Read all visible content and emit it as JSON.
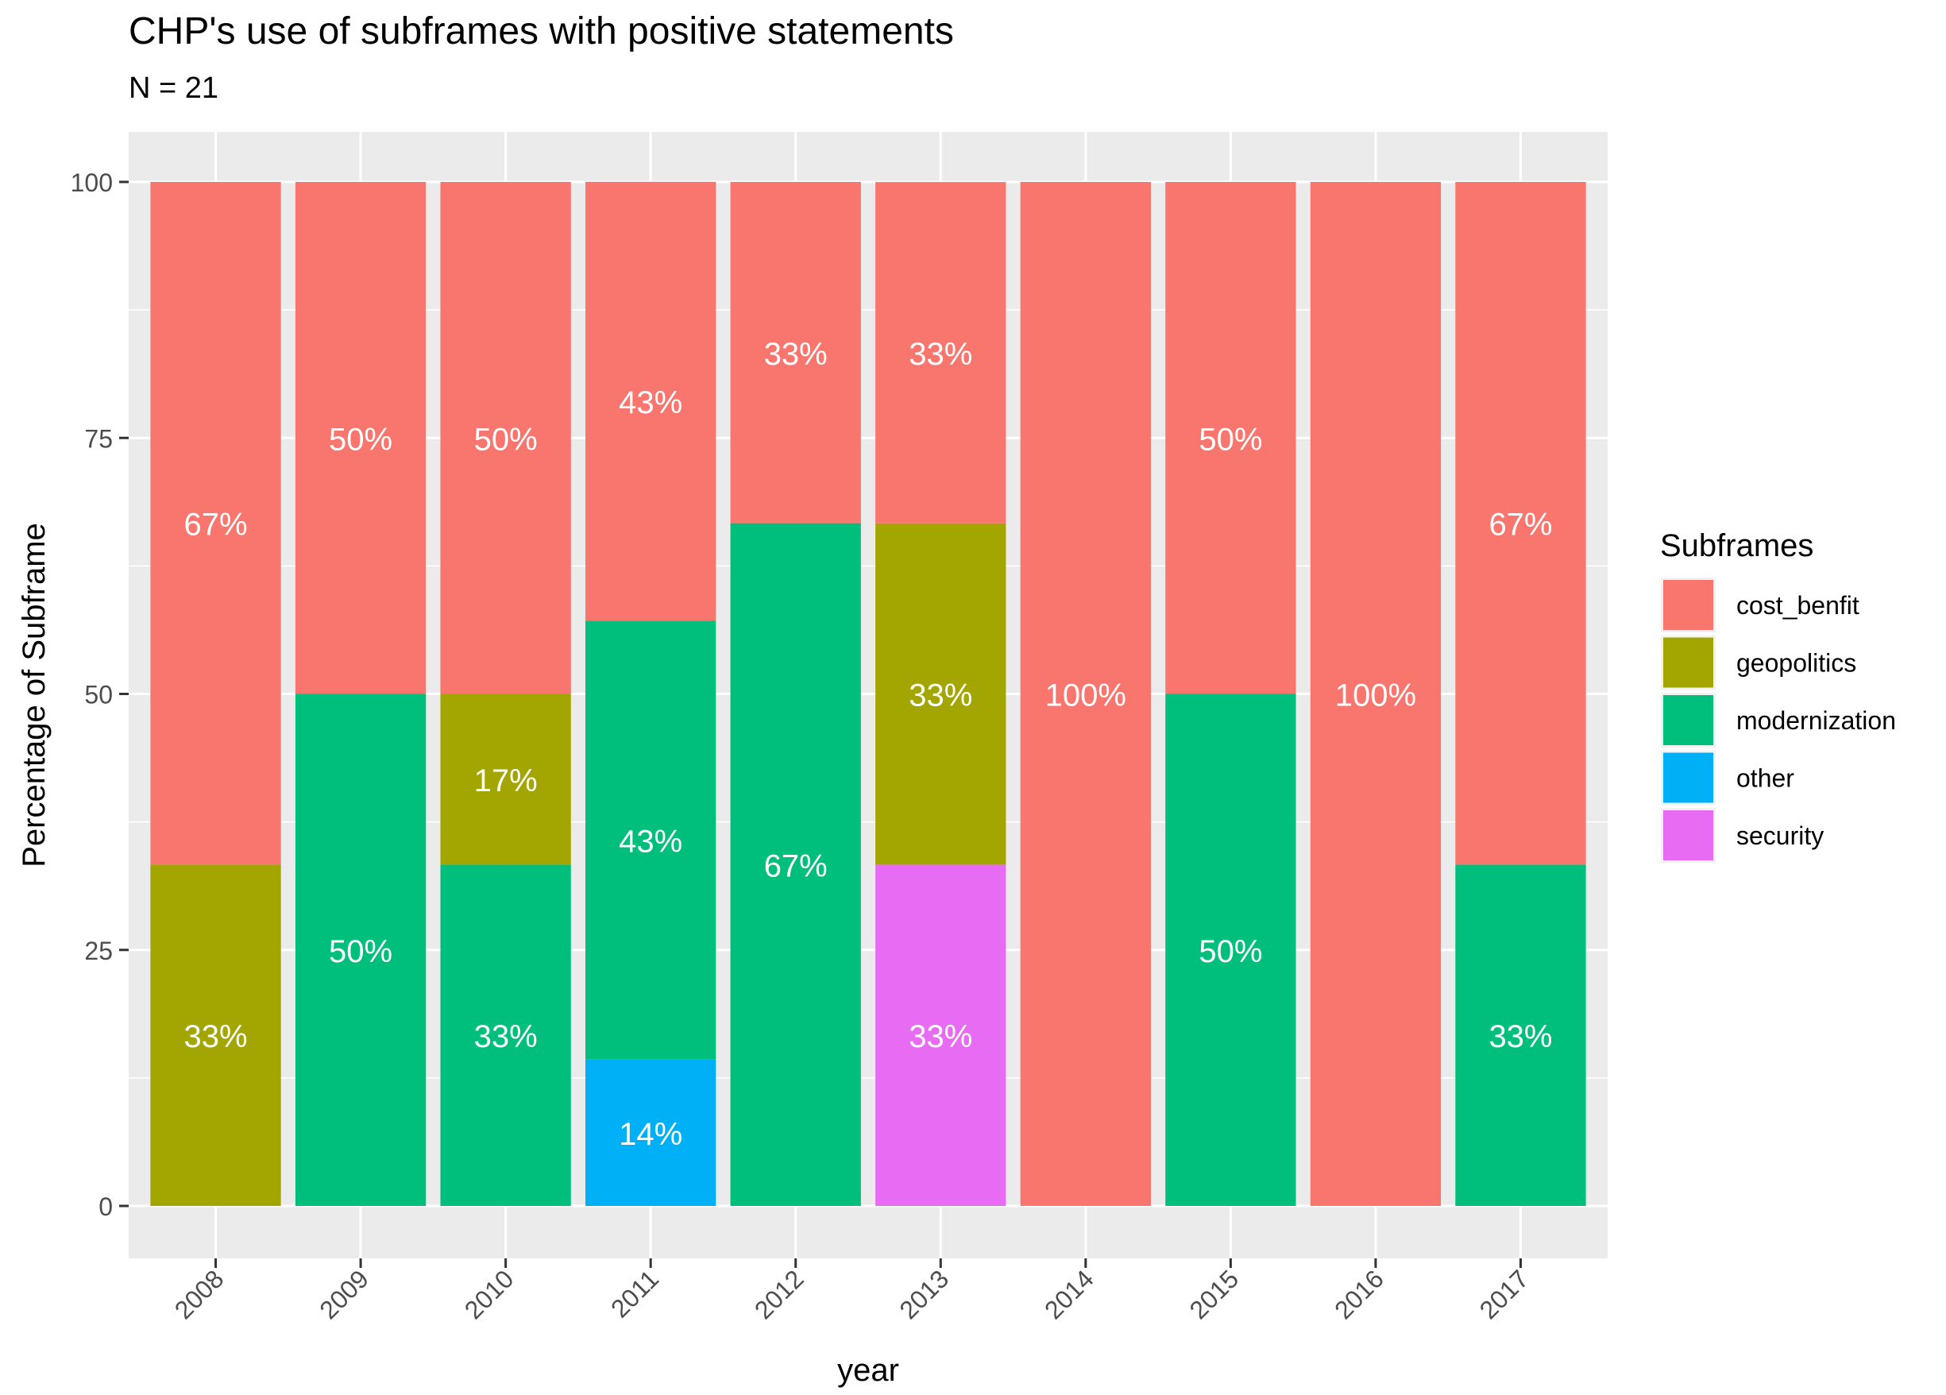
{
  "chart_data": {
    "type": "bar",
    "stacked": true,
    "title": "CHP's use of subframes with positive statements",
    "subtitle": "N = 21",
    "xlabel": "year",
    "ylabel": "Percentage of Subframe",
    "ylim": [
      0,
      100
    ],
    "yticks": [
      0,
      25,
      50,
      75,
      100
    ],
    "grid": true,
    "legend_position": "right",
    "legend_title": "Subframes",
    "categories": [
      "2008",
      "2009",
      "2010",
      "2011",
      "2012",
      "2013",
      "2014",
      "2015",
      "2016",
      "2017"
    ],
    "series": [
      {
        "name": "cost_benfit",
        "color": "#F8766D",
        "values": [
          66.67,
          50,
          50,
          42.86,
          33.33,
          33.33,
          100,
          50,
          100,
          66.67
        ],
        "labels": [
          "67%",
          "50%",
          "50%",
          "43%",
          "33%",
          "33%",
          "100%",
          "50%",
          "100%",
          "67%"
        ]
      },
      {
        "name": "geopolitics",
        "color": "#A3A500",
        "values": [
          33.33,
          0,
          16.67,
          0,
          0,
          33.33,
          0,
          0,
          0,
          0
        ],
        "labels": [
          "33%",
          "",
          "17%",
          "",
          "",
          "33%",
          "",
          "",
          "",
          ""
        ]
      },
      {
        "name": "modernization",
        "color": "#00BF7D",
        "values": [
          0,
          50,
          33.33,
          42.86,
          66.67,
          0,
          0,
          50,
          0,
          33.33
        ],
        "labels": [
          "",
          "50%",
          "33%",
          "43%",
          "67%",
          "",
          "",
          "50%",
          "",
          "33%"
        ]
      },
      {
        "name": "other",
        "color": "#00B0F6",
        "values": [
          0,
          0,
          0,
          14.29,
          0,
          0,
          0,
          0,
          0,
          0
        ],
        "labels": [
          "",
          "",
          "",
          "14%",
          "",
          "",
          "",
          "",
          "",
          ""
        ]
      },
      {
        "name": "security",
        "color": "#E76BF3",
        "values": [
          0,
          0,
          0,
          0,
          0,
          33.33,
          0,
          0,
          0,
          0
        ],
        "labels": [
          "",
          "",
          "",
          "",
          "",
          "33%",
          "",
          "",
          "",
          ""
        ]
      }
    ]
  }
}
